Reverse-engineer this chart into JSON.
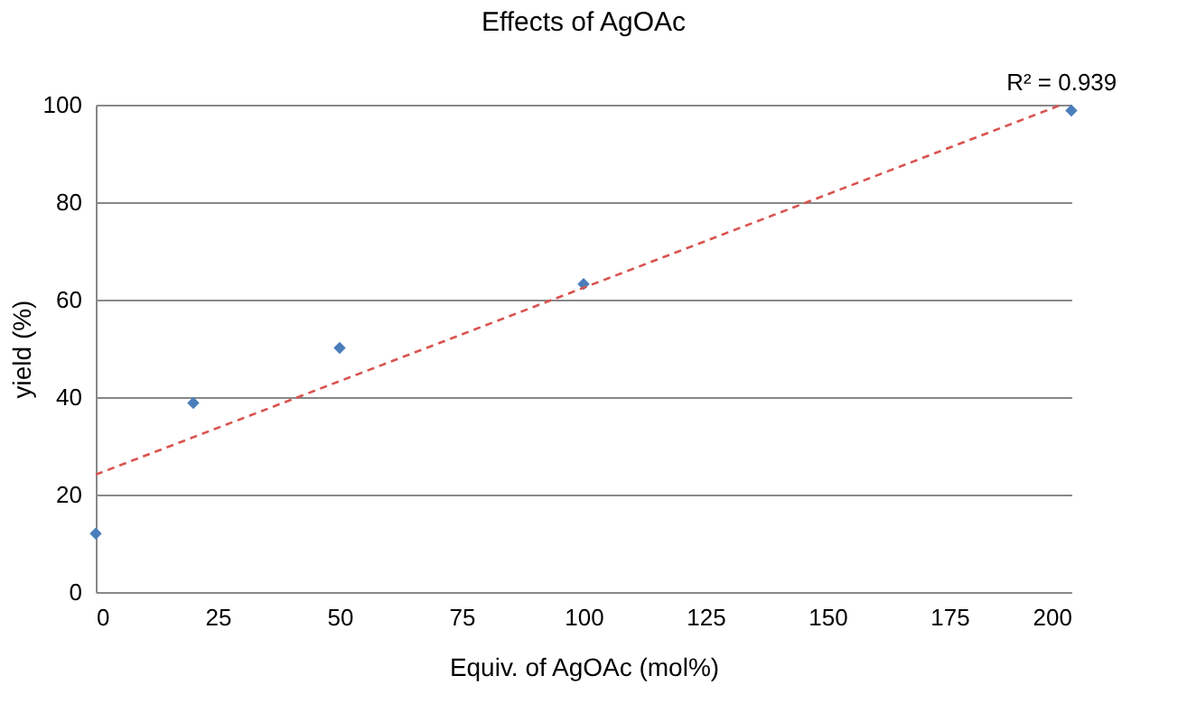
{
  "chart_data": {
    "type": "scatter",
    "title": "Effects of AgOAc",
    "xlabel": "Equiv. of AgOAc (mol%)",
    "ylabel": "yield (%)",
    "series": [
      {
        "type": "scatter",
        "color": "#4a7ebb",
        "marker": "diamond",
        "x": [
          0,
          20,
          50,
          100,
          200
        ],
        "values": [
          12.0,
          38.8,
          50.1,
          63.2,
          98.8
        ]
      },
      {
        "type": "line",
        "color": "#d9534f",
        "line_style": "dashed",
        "marker": "none",
        "x": [
          0,
          198
        ],
        "values": [
          24.1,
          100
        ]
      }
    ],
    "annotations": [
      {
        "text": "R² = 0.939",
        "x": 198,
        "y": 100
      }
    ],
    "xlim": [
      0,
      200
    ],
    "xticks": [
      0,
      25,
      50,
      75,
      100,
      125,
      150,
      175,
      200
    ],
    "ylim": [
      0,
      100
    ],
    "yticks": [
      0,
      20,
      40,
      60,
      80,
      100
    ],
    "grid": "y"
  }
}
